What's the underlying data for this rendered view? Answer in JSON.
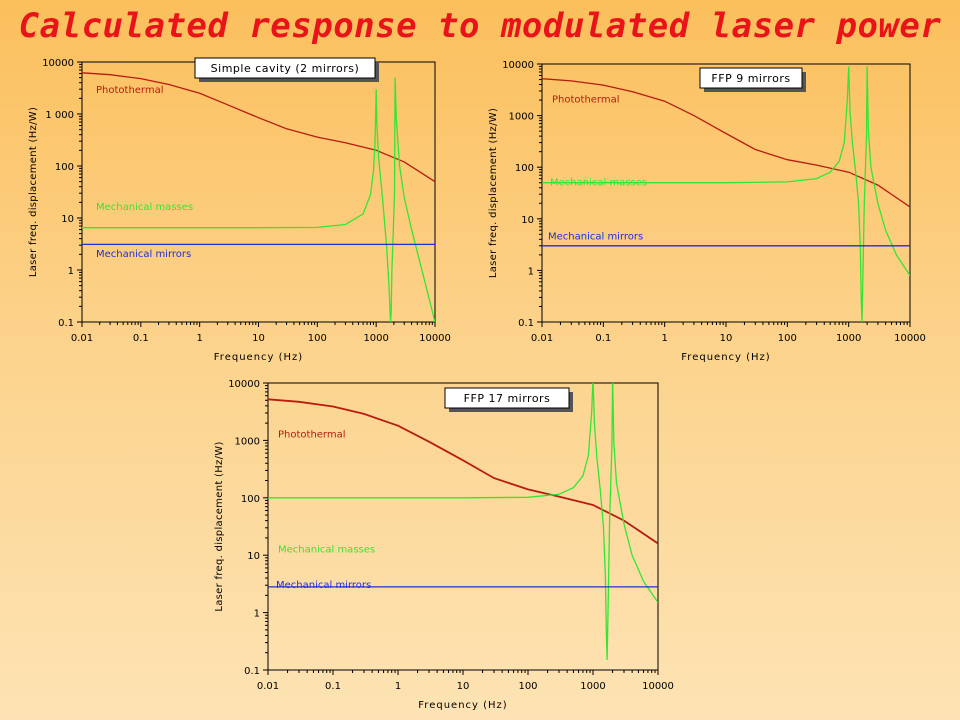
{
  "title": "Calculated response to modulated laser power",
  "colors": {
    "photothermal": "#b81c10",
    "masses": "#33e633",
    "mirrors": "#1f2ee0",
    "title": "#e8141a"
  },
  "chart_data": [
    {
      "type": "line",
      "scale": "log-log",
      "title": "Simple cavity (2 mirrors)",
      "xlabel": "Frequency (Hz)",
      "ylabel": "Laser freq. displacement (Hz/W)",
      "xlim": [
        0.01,
        10000
      ],
      "ylim": [
        0.1,
        10000
      ],
      "xticks": [
        "0.01",
        "0.1",
        "1",
        "10",
        "100",
        "1000",
        "10000"
      ],
      "yticks": [
        "0.1",
        "1",
        "10",
        "100",
        "1 000",
        "10000"
      ],
      "series": [
        {
          "name": "Photothermal",
          "x": [
            0.01,
            0.03,
            0.1,
            0.3,
            1,
            3,
            10,
            30,
            100,
            300,
            1000,
            3000,
            10000
          ],
          "y": [
            6200,
            5700,
            4800,
            3700,
            2500,
            1500,
            850,
            520,
            360,
            280,
            200,
            120,
            50
          ]
        },
        {
          "name": "Mechanical masses",
          "x": [
            0.01,
            0.1,
            1,
            10,
            100,
            300,
            600,
            800,
            900,
            950,
            980,
            1000,
            1030,
            1100,
            1300,
            1500,
            1650,
            1750,
            1800,
            1850,
            1950,
            2050,
            2100,
            2200,
            2500,
            3000,
            4000,
            6000,
            10000
          ],
          "y": [
            6.5,
            6.5,
            6.5,
            6.5,
            6.6,
            7.5,
            12,
            28,
            80,
            250,
            1000,
            3000,
            600,
            150,
            20,
            3,
            0.5,
            0.1,
            0.15,
            1,
            5,
            30,
            5000,
            800,
            100,
            25,
            6,
            1,
            0.1
          ]
        },
        {
          "name": "Mechanical mirrors",
          "x": [
            0.01,
            10000
          ],
          "y": [
            3.1,
            3.1
          ]
        }
      ]
    },
    {
      "type": "line",
      "scale": "log-log",
      "title": "FFP 9 mirrors",
      "xlabel": "Frequency (Hz)",
      "ylabel": "Laser freq. displacement (Hz/W)",
      "xlim": [
        0.01,
        10000
      ],
      "ylim": [
        0.1,
        10000
      ],
      "xticks": [
        "0.01",
        "0.1",
        "1",
        "10",
        "100",
        "1000",
        "10000"
      ],
      "yticks": [
        "0.1",
        "1",
        "10",
        "100",
        "1000",
        "10000"
      ],
      "series": [
        {
          "name": "Photothermal",
          "x": [
            0.01,
            0.03,
            0.1,
            0.3,
            1,
            3,
            10,
            30,
            100,
            300,
            1000,
            3000,
            10000
          ],
          "y": [
            5200,
            4700,
            3900,
            2900,
            1900,
            1000,
            450,
            220,
            140,
            110,
            80,
            45,
            17
          ]
        },
        {
          "name": "Mechanical masses",
          "x": [
            0.01,
            0.1,
            1,
            10,
            100,
            300,
            500,
            700,
            850,
            950,
            1000,
            1050,
            1150,
            1300,
            1450,
            1550,
            1600,
            1650,
            1700,
            1800,
            1950,
            2000,
            2100,
            2300,
            3000,
            4000,
            6000,
            10000
          ],
          "y": [
            50,
            50,
            50,
            50,
            52,
            60,
            80,
            130,
            300,
            2000,
            9000,
            1200,
            300,
            80,
            20,
            3,
            0.3,
            0.1,
            0.6,
            20,
            400,
            9000,
            500,
            100,
            20,
            6,
            2,
            0.8
          ]
        },
        {
          "name": "Mechanical mirrors",
          "x": [
            0.01,
            10000
          ],
          "y": [
            3,
            3
          ]
        }
      ]
    },
    {
      "type": "line",
      "scale": "log-log",
      "title": "FFP 17 mirrors",
      "xlabel": "Frequency (Hz)",
      "ylabel": "Laser freq. displacement (Hz/W)",
      "xlim": [
        0.01,
        10000
      ],
      "ylim": [
        0.1,
        10000
      ],
      "xticks": [
        "0.01",
        "0.1",
        "1",
        "10",
        "100",
        "1000",
        "10000"
      ],
      "yticks": [
        "0.1",
        "1",
        "10",
        "100",
        "1000",
        "10000"
      ],
      "series": [
        {
          "name": "Photothermal",
          "x": [
            0.01,
            0.03,
            0.1,
            0.3,
            1,
            3,
            10,
            30,
            100,
            300,
            1000,
            3000,
            10000
          ],
          "y": [
            5200,
            4700,
            3900,
            2900,
            1800,
            950,
            450,
            220,
            140,
            105,
            75,
            40,
            16
          ]
        },
        {
          "name": "Mechanical masses",
          "x": [
            0.01,
            0.1,
            1,
            10,
            100,
            300,
            500,
            700,
            850,
            950,
            1000,
            1050,
            1150,
            1300,
            1450,
            1550,
            1600,
            1650,
            1700,
            1800,
            1950,
            2000,
            2100,
            2300,
            3000,
            4000,
            6000,
            10000
          ],
          "y": [
            100,
            100,
            100,
            100,
            102,
            115,
            150,
            240,
            550,
            3000,
            12000,
            2000,
            500,
            130,
            30,
            4,
            0.5,
            0.15,
            1,
            40,
            800,
            12000,
            900,
            180,
            35,
            10,
            3.5,
            1.5
          ]
        },
        {
          "name": "Mechanical mirrors",
          "x": [
            0.01,
            10000
          ],
          "y": [
            2.8,
            2.8
          ]
        }
      ]
    }
  ]
}
